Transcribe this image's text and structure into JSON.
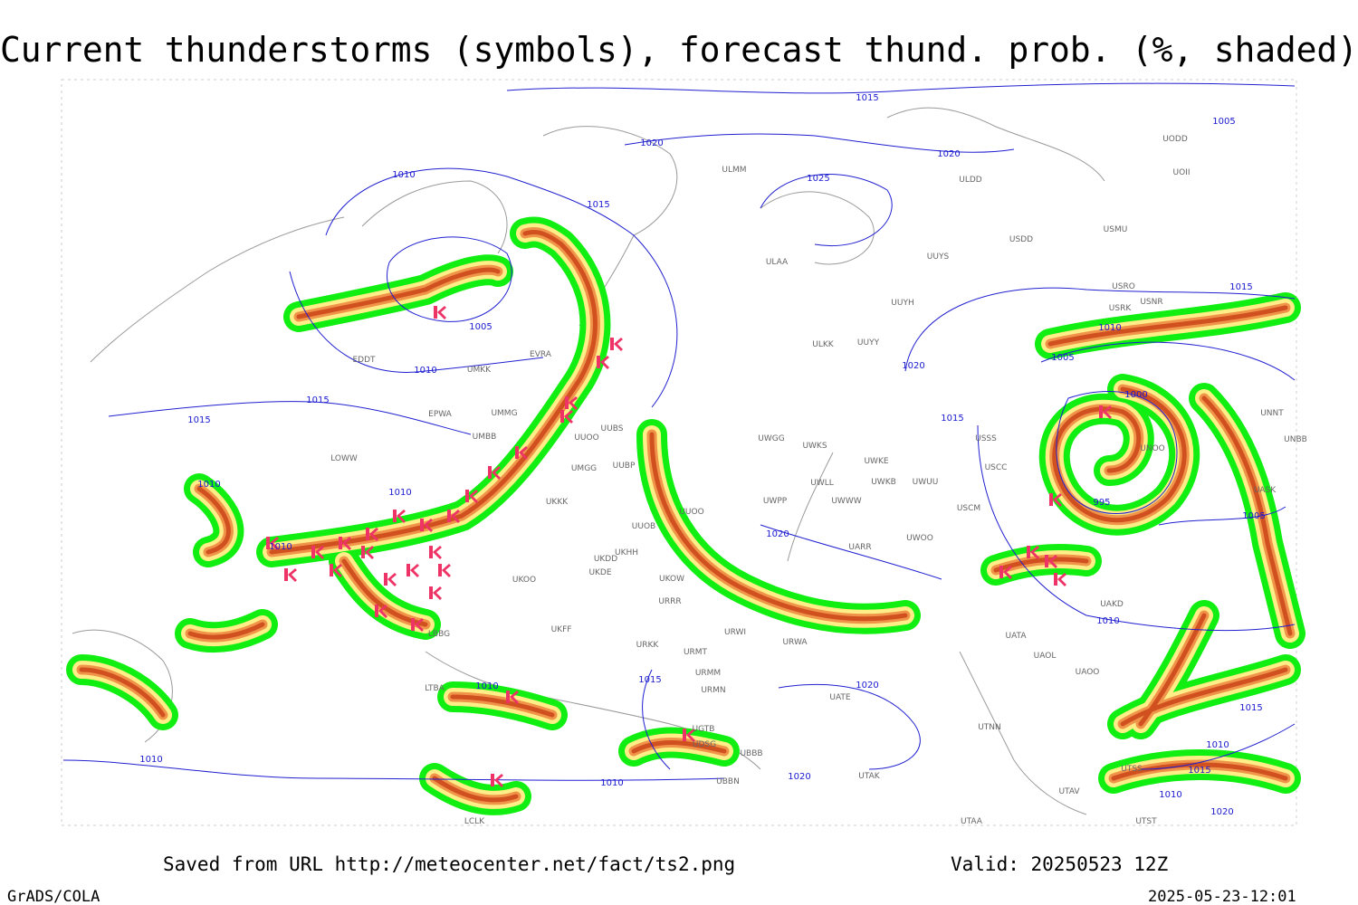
{
  "header": {
    "title": "Current thunderstorms (symbols), forecast thund. prob. (%, shaded)"
  },
  "footer": {
    "source": "Saved from URL http://meteocenter.net/fact/ts2.png",
    "valid": "Valid: 20250523 12Z",
    "software": "GrADS/COLA",
    "timestamp": "2025-05-23-12:01"
  },
  "map": {
    "isobar_labels": [
      "1015",
      "1020",
      "1020",
      "1025",
      "1005",
      "1010",
      "1015",
      "1005",
      "1010",
      "1015",
      "1015",
      "1010",
      "1010",
      "1010",
      "1020",
      "1015",
      "1010",
      "1005",
      "1000",
      "1015",
      "995",
      "1005",
      "1020",
      "1010",
      "1010",
      "1015",
      "1020",
      "1010",
      "1010",
      "1020",
      "1015",
      "1010",
      "1020",
      "1015",
      "1010"
    ],
    "station_labels": [
      "ULMM",
      "ULDD",
      "UODD",
      "UOII",
      "USMU",
      "USDD",
      "UUYS",
      "ULAA",
      "USRO",
      "USRK",
      "USNR",
      "UUYH",
      "ULKK",
      "UUYY",
      "EDDT",
      "UMKK",
      "EVRA",
      "EPWA",
      "UMMG",
      "UMBB",
      "UUBS",
      "UUOO",
      "UWGG",
      "UWKS",
      "UWKE",
      "USSS",
      "USCC",
      "UNOO",
      "UNBB",
      "UNNT",
      "LOWW",
      "UMGG",
      "UUBP",
      "UWLL",
      "UWKB",
      "UWUU",
      "UWPP",
      "UWWW",
      "USCM",
      "UASK",
      "UKKK",
      "UUOO",
      "UUOB",
      "UWOO",
      "UARR",
      "UKHH",
      "UKDD",
      "UKDE",
      "UKOO",
      "UKOW",
      "URRR",
      "UAKD",
      "UKFF",
      "URWI",
      "URKK",
      "URMT",
      "URWA",
      "UATA",
      "UAOL",
      "UAOO",
      "URMM",
      "URMN",
      "UATE",
      "UTNN",
      "UGTB",
      "UDSG",
      "UBBB",
      "UBBN",
      "UTAK",
      "UTAV",
      "UTSS",
      "UTST",
      "UTAA",
      "LTBA",
      "LBBG",
      "LCLK"
    ]
  }
}
